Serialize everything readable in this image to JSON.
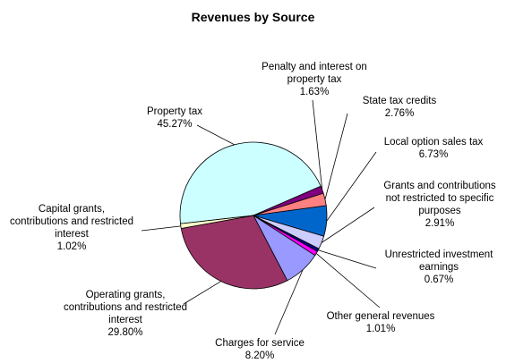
{
  "chart_data": {
    "type": "pie",
    "title": "Revenues by Source",
    "slices": [
      {
        "name": "Property tax",
        "value": 45.27,
        "label": "45.27%",
        "color": "#ccffff"
      },
      {
        "name": "Penalty and interest on property tax",
        "value": 1.63,
        "label": "1.63%",
        "color": "#800080"
      },
      {
        "name": "State tax credits",
        "value": 2.76,
        "label": "2.76%",
        "color": "#ff8080"
      },
      {
        "name": "Local option sales tax",
        "value": 6.73,
        "label": "6.73%",
        "color": "#0066cc"
      },
      {
        "name": "Grants and contributions not restricted to specific purposes",
        "value": 2.91,
        "label": "2.91%",
        "color": "#ccccff"
      },
      {
        "name": "Unrestricted investment earnings",
        "value": 0.67,
        "label": "0.67%",
        "color": "#000080"
      },
      {
        "name": "Other general revenues",
        "value": 1.01,
        "label": "1.01%",
        "color": "#ff00ff"
      },
      {
        "name": "Charges for service",
        "value": 8.2,
        "label": "8.20%",
        "color": "#9999ff"
      },
      {
        "name": "Operating grants, contributions and restricted interest",
        "value": 29.8,
        "label": "29.80%",
        "color": "#993366"
      },
      {
        "name": "Capital grants, contributions and restricted interest",
        "value": 1.02,
        "label": "1.02%",
        "color": "#ffffcc"
      }
    ]
  },
  "labels": {
    "property_tax": {
      "line1": "Property tax",
      "pct": "45.27%"
    },
    "penalty": {
      "line1": "Penalty and interest on",
      "line2": "property tax",
      "pct": "1.63%"
    },
    "state_tax": {
      "line1": "State tax credits",
      "pct": "2.76%"
    },
    "local_option": {
      "line1": "Local option sales tax",
      "pct": "6.73%"
    },
    "grants_unrestricted": {
      "line1": "Grants and contributions",
      "line2": "not restricted to specific",
      "line3": "purposes",
      "pct": "2.91%"
    },
    "investment": {
      "line1": "Unrestricted investment",
      "line2": "earnings",
      "pct": "0.67%"
    },
    "other_general": {
      "line1": "Other general revenues",
      "pct": "1.01%"
    },
    "charges": {
      "line1": "Charges for service",
      "pct": "8.20%"
    },
    "operating": {
      "line1": "Operating grants,",
      "line2": "contributions and restricted",
      "line3": "interest",
      "pct": "29.80%"
    },
    "capital": {
      "line1": "Capital grants,",
      "line2": "contributions and restricted",
      "line3": "interest",
      "pct": "1.02%"
    }
  }
}
